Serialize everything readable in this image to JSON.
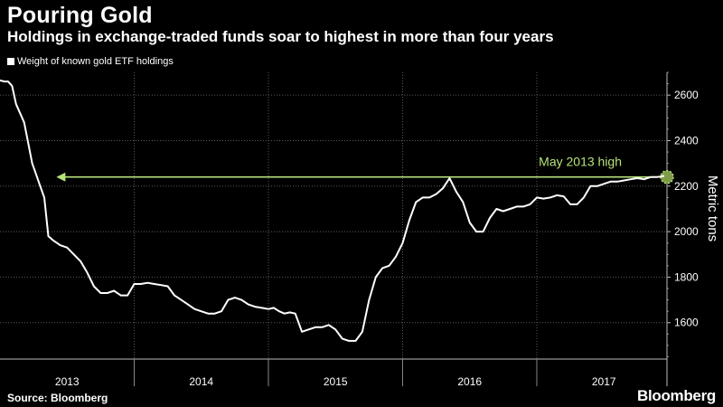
{
  "chart_data": {
    "type": "line",
    "title": "Pouring Gold",
    "subtitle": "Holdings in exchange-traded funds soar to highest in more than four years",
    "legend": [
      "Weight of known gold ETF holdings"
    ],
    "ylabel": "Metric tons",
    "xlabel": "",
    "ylim": [
      1440,
      2700
    ],
    "y_ticks": [
      1600,
      1800,
      2000,
      2200,
      2400,
      2600
    ],
    "x_range": [
      2013.0,
      2017.97
    ],
    "x_tick_labels": [
      "2013",
      "2014",
      "2015",
      "2016",
      "2017"
    ],
    "series": [
      {
        "name": "Weight of known gold ETF holdings",
        "color": "#ffffff",
        "x": [
          2013.0,
          2013.03,
          2013.06,
          2013.09,
          2013.12,
          2013.15,
          2013.18,
          2013.21,
          2013.24,
          2013.27,
          2013.3,
          2013.33,
          2013.36,
          2013.4,
          2013.45,
          2013.5,
          2013.55,
          2013.6,
          2013.65,
          2013.7,
          2013.75,
          2013.8,
          2013.85,
          2013.9,
          2013.95,
          2014.0,
          2014.05,
          2014.1,
          2014.15,
          2014.2,
          2014.25,
          2014.3,
          2014.35,
          2014.4,
          2014.45,
          2014.5,
          2014.55,
          2014.6,
          2014.65,
          2014.7,
          2014.75,
          2014.8,
          2014.85,
          2014.9,
          2014.95,
          2015.0,
          2015.04,
          2015.08,
          2015.12,
          2015.16,
          2015.2,
          2015.25,
          2015.3,
          2015.35,
          2015.4,
          2015.45,
          2015.5,
          2015.55,
          2015.6,
          2015.65,
          2015.7,
          2015.75,
          2015.8,
          2015.85,
          2015.9,
          2015.95,
          2016.0,
          2016.05,
          2016.1,
          2016.15,
          2016.2,
          2016.25,
          2016.3,
          2016.35,
          2016.4,
          2016.45,
          2016.5,
          2016.55,
          2016.6,
          2016.65,
          2016.7,
          2016.75,
          2016.8,
          2016.85,
          2016.9,
          2016.95,
          2017.0,
          2017.05,
          2017.1,
          2017.15,
          2017.2,
          2017.25,
          2017.3,
          2017.35,
          2017.4,
          2017.45,
          2017.5,
          2017.55,
          2017.6,
          2017.65,
          2017.7,
          2017.75,
          2017.8,
          2017.85,
          2017.9,
          2017.95
        ],
        "values": [
          2665,
          2660,
          2660,
          2640,
          2560,
          2520,
          2480,
          2390,
          2300,
          2250,
          2200,
          2150,
          1980,
          1960,
          1940,
          1930,
          1900,
          1870,
          1820,
          1760,
          1730,
          1730,
          1740,
          1720,
          1720,
          1770,
          1770,
          1775,
          1770,
          1765,
          1760,
          1720,
          1700,
          1680,
          1660,
          1650,
          1640,
          1640,
          1650,
          1700,
          1710,
          1700,
          1680,
          1670,
          1665,
          1660,
          1665,
          1650,
          1640,
          1645,
          1640,
          1560,
          1570,
          1580,
          1580,
          1590,
          1570,
          1530,
          1520,
          1520,
          1560,
          1700,
          1800,
          1840,
          1850,
          1890,
          1950,
          2050,
          2130,
          2150,
          2150,
          2165,
          2190,
          2235,
          2175,
          2130,
          2040,
          2000,
          2000,
          2060,
          2100,
          2090,
          2100,
          2110,
          2110,
          2120,
          2150,
          2145,
          2150,
          2160,
          2155,
          2120,
          2120,
          2150,
          2200,
          2200,
          2210,
          2220,
          2220,
          2225,
          2230,
          2235,
          2230,
          2240,
          2240,
          2245
        ]
      }
    ],
    "annotation": {
      "label": "May 2013 high",
      "value": 2240,
      "x_start": 2013.42,
      "x_end": 2017.97,
      "color": "#b6e27a"
    }
  },
  "footer": {
    "source": "Source: Bloomberg",
    "brand": "Bloomberg"
  }
}
